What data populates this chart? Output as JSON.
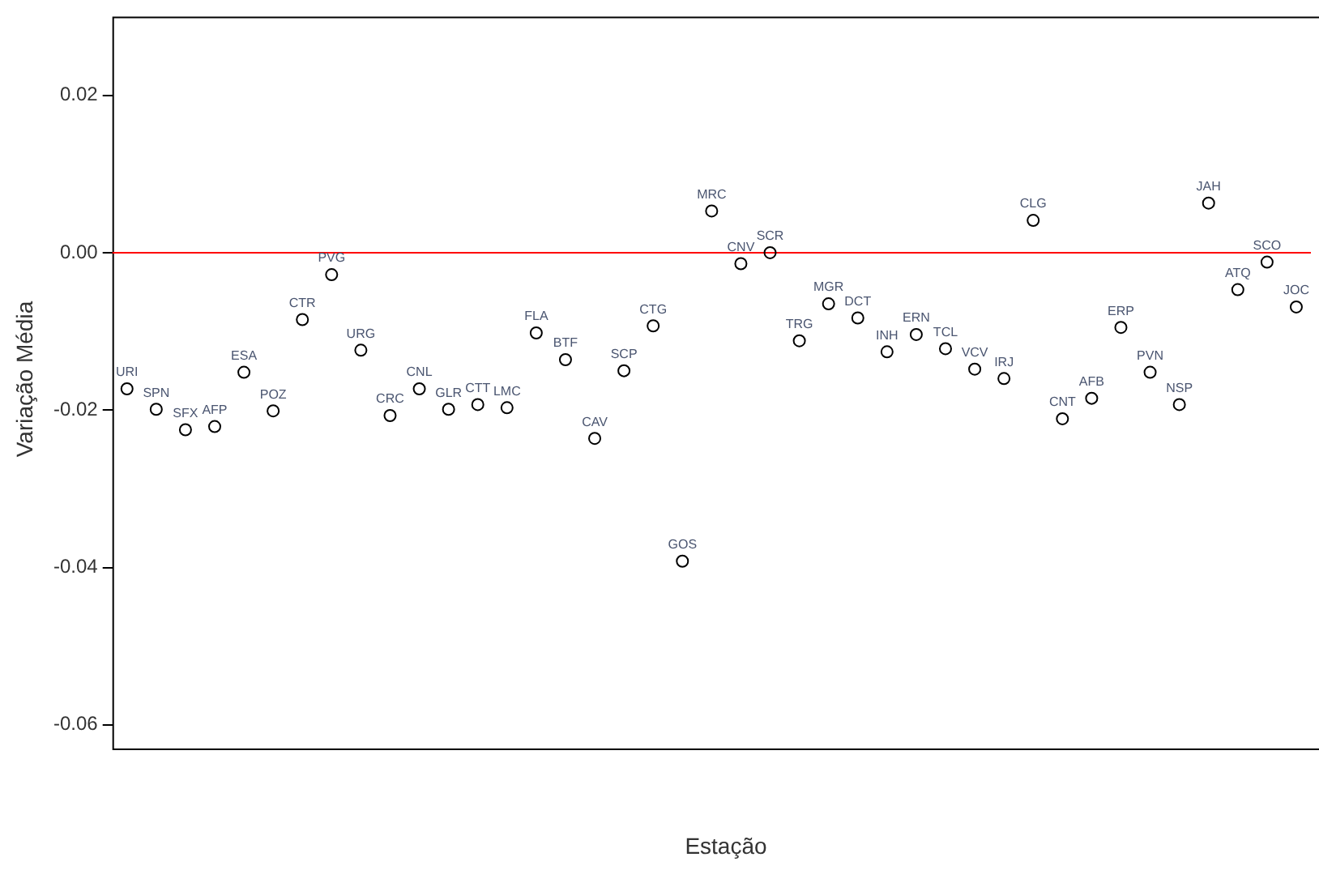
{
  "chart_data": {
    "type": "scatter",
    "xlabel": "Estação",
    "ylabel": "Variação Média",
    "categories": [
      null,
      null,
      null,
      null,
      null,
      null,
      null,
      null,
      null,
      null,
      null,
      null,
      null,
      null,
      null,
      null,
      null,
      null,
      null,
      null,
      null,
      null,
      null,
      null,
      null,
      null,
      null,
      null,
      null,
      null,
      null,
      null,
      null,
      null,
      null,
      null,
      null,
      null,
      null,
      null,
      null
    ],
    "values": [
      -0.0173,
      -0.0199,
      -0.0225,
      -0.0221,
      -0.0152,
      -0.0201,
      -0.0085,
      -0.0028,
      -0.0124,
      -0.0207,
      -0.0173,
      -0.0199,
      -0.0193,
      -0.0197,
      -0.0102,
      -0.0136,
      -0.0236,
      -0.015,
      -0.0093,
      -0.0392,
      0.0053,
      -0.0014,
      0.0,
      -0.0112,
      -0.0065,
      -0.0083,
      -0.0126,
      -0.0104,
      -0.0122,
      -0.0148,
      -0.016,
      0.0041,
      -0.0211,
      -0.0185,
      -0.0095,
      -0.0152,
      -0.0193,
      0.0063,
      -0.0047,
      -0.0012,
      -0.0069
    ],
    "value_labels": [
      "URI",
      "SPN",
      "SFX",
      "AFP",
      "ESA",
      "POZ",
      "CTR",
      "PVG",
      "URG",
      "CRC",
      "CNL",
      "GLR",
      "CTT",
      "LMC",
      "FLA",
      "BTF",
      "CAV",
      "SCP",
      "CTG",
      "GOS",
      "MRC",
      "CNV",
      "SCR",
      "TRG",
      "MGR",
      "DCT",
      "INH",
      "ERN",
      "TCL",
      "VCV",
      "IRJ",
      "CLG",
      "CNT",
      "AFB",
      "ERP",
      "PVN",
      "NSP",
      "JAH",
      "ATQ",
      "SCO",
      "JOC"
    ],
    "color": "#000000",
    "ylim": [
      -0.063,
      0.03
    ],
    "yticks": [
      -0.06,
      -0.04,
      -0.02,
      {
        "value": 0,
        "label": "0.00"
      },
      0.02
    ],
    "ref_lines": [
      {
        "axis": "y",
        "value": 0,
        "color": "#ff0000"
      }
    ],
    "marker": "circle",
    "grid": false,
    "legend": false,
    "tick_labels": "y"
  }
}
